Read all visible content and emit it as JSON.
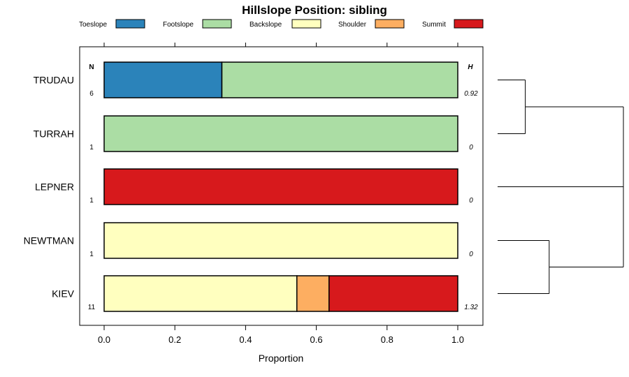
{
  "chart_data": {
    "type": "bar",
    "orientation": "horizontal",
    "stacked": true,
    "title": "Hillslope Position: sibling",
    "xlabel": "Proportion",
    "xlim": [
      -0.07,
      1.07
    ],
    "xticks": [
      "0.0",
      "0.2",
      "0.4",
      "0.6",
      "0.8",
      "1.0"
    ],
    "legend_position": "top",
    "n_header": "N",
    "h_header": "H",
    "categories": [
      {
        "label": "Toeslope",
        "color": "#2b83ba"
      },
      {
        "label": "Footslope",
        "color": "#abdda4"
      },
      {
        "label": "Backslope",
        "color": "#ffffbf"
      },
      {
        "label": "Shoulder",
        "color": "#fdae61"
      },
      {
        "label": "Summit",
        "color": "#d7191c"
      }
    ],
    "rows": [
      {
        "name": "TRUDAU",
        "n": "6",
        "h": "0.92",
        "values": [
          0.333,
          0.667,
          0,
          0,
          0
        ]
      },
      {
        "name": "TURRAH",
        "n": "1",
        "h": "0",
        "values": [
          0,
          1,
          0,
          0,
          0
        ]
      },
      {
        "name": "LEPNER",
        "n": "1",
        "h": "0",
        "values": [
          0,
          0,
          0,
          0,
          1
        ]
      },
      {
        "name": "NEWTMAN",
        "n": "1",
        "h": "0",
        "values": [
          0,
          0,
          1,
          0,
          0
        ]
      },
      {
        "name": "KIEV",
        "n": "11",
        "h": "1.32",
        "values": [
          0,
          0,
          0.545,
          0.091,
          0.364
        ]
      }
    ],
    "dendrogram": {
      "merges": [
        {
          "left": "TRUDAU",
          "right": "TURRAH",
          "height": 0.22
        },
        {
          "left": "NEWTMAN",
          "right": "KIEV",
          "height": 0.41
        },
        {
          "left": "cluster-NEWTMAN-KIEV",
          "right": "LEPNER",
          "height": 1.0
        },
        {
          "left": "cluster-TRUDAU-TURRAH",
          "right": "cluster-LEPNER-NEWTMAN-KIEV",
          "height": 1.0
        }
      ]
    }
  }
}
